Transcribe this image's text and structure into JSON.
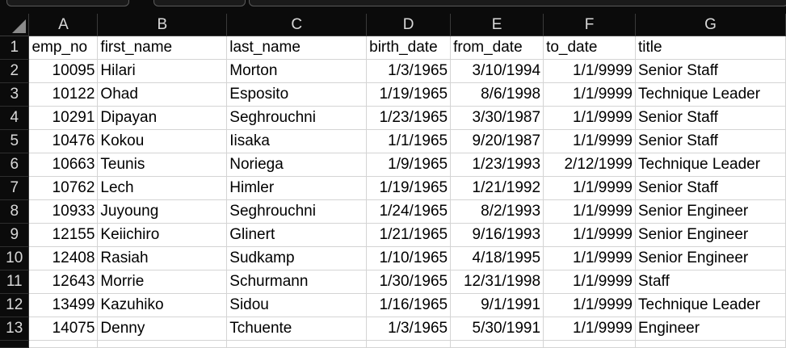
{
  "columns": [
    "A",
    "B",
    "C",
    "D",
    "E",
    "F",
    "G"
  ],
  "rows": [
    {
      "n": "1",
      "cells": [
        "emp_no",
        "first_name",
        "last_name",
        "birth_date",
        "from_date",
        "to_date",
        "title"
      ]
    },
    {
      "n": "2",
      "cells": [
        "10095",
        "Hilari",
        "Morton",
        "1/3/1965",
        "3/10/1994",
        "1/1/9999",
        "Senior Staff"
      ]
    },
    {
      "n": "3",
      "cells": [
        "10122",
        "Ohad",
        "Esposito",
        "1/19/1965",
        "8/6/1998",
        "1/1/9999",
        "Technique Leader"
      ]
    },
    {
      "n": "4",
      "cells": [
        "10291",
        "Dipayan",
        "Seghrouchni",
        "1/23/1965",
        "3/30/1987",
        "1/1/9999",
        "Senior Staff"
      ]
    },
    {
      "n": "5",
      "cells": [
        "10476",
        "Kokou",
        "Iisaka",
        "1/1/1965",
        "9/20/1987",
        "1/1/9999",
        "Senior Staff"
      ]
    },
    {
      "n": "6",
      "cells": [
        "10663",
        "Teunis",
        "Noriega",
        "1/9/1965",
        "1/23/1993",
        "2/12/1999",
        "Technique Leader"
      ]
    },
    {
      "n": "7",
      "cells": [
        "10762",
        "Lech",
        "Himler",
        "1/19/1965",
        "1/21/1992",
        "1/1/9999",
        "Senior Staff"
      ]
    },
    {
      "n": "8",
      "cells": [
        "10933",
        "Juyoung",
        "Seghrouchni",
        "1/24/1965",
        "8/2/1993",
        "1/1/9999",
        "Senior Engineer"
      ]
    },
    {
      "n": "9",
      "cells": [
        "12155",
        "Keiichiro",
        "Glinert",
        "1/21/1965",
        "9/16/1993",
        "1/1/9999",
        "Senior Engineer"
      ]
    },
    {
      "n": "10",
      "cells": [
        "12408",
        "Rasiah",
        "Sudkamp",
        "1/10/1965",
        "4/18/1995",
        "1/1/9999",
        "Senior Engineer"
      ]
    },
    {
      "n": "11",
      "cells": [
        "12643",
        "Morrie",
        "Schurmann",
        "1/30/1965",
        "12/31/1998",
        "1/1/9999",
        "Staff"
      ]
    },
    {
      "n": "12",
      "cells": [
        "13499",
        "Kazuhiko",
        "Sidou",
        "1/16/1965",
        "9/1/1991",
        "1/1/9999",
        "Technique Leader"
      ]
    },
    {
      "n": "13",
      "cells": [
        "14075",
        "Denny",
        "Tchuente",
        "1/3/1965",
        "5/30/1991",
        "1/1/9999",
        "Engineer"
      ]
    }
  ]
}
